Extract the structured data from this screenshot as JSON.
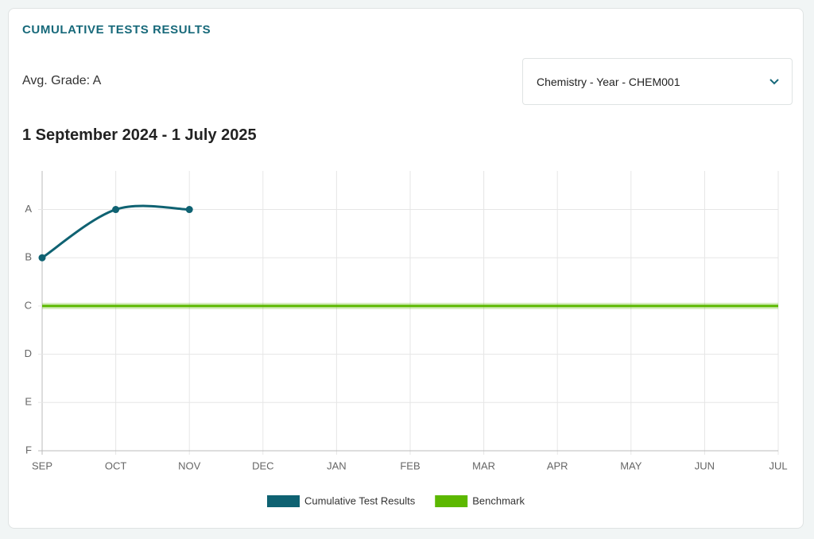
{
  "header": {
    "title": "CUMULATIVE TESTS RESULTS",
    "avg_grade": "Avg. Grade: A",
    "dropdown": "Chemistry - Year - CHEM001",
    "date_range": "1 September 2024 - 1 July 2025"
  },
  "chart_data": {
    "type": "line",
    "categories": [
      "SEP",
      "OCT",
      "NOV",
      "DEC",
      "JAN",
      "FEB",
      "MAR",
      "APR",
      "MAY",
      "JUN",
      "JUL"
    ],
    "series": [
      {
        "name": "Cumulative Test Results",
        "color": "#0f6272",
        "values": [
          4,
          5,
          5,
          null,
          null,
          null,
          null,
          null,
          null,
          null,
          null
        ]
      },
      {
        "name": "Benchmark",
        "color": "#5cb800",
        "values": [
          3,
          3,
          3,
          3,
          3,
          3,
          3,
          3,
          3,
          3,
          3
        ]
      }
    ],
    "ylim": [
      0,
      5.8
    ],
    "yticks": [
      {
        "value": 0,
        "label": "F"
      },
      {
        "value": 1,
        "label": "E"
      },
      {
        "value": 2,
        "label": "D"
      },
      {
        "value": 3,
        "label": "C"
      },
      {
        "value": 4,
        "label": "B"
      },
      {
        "value": 5,
        "label": "A"
      }
    ],
    "grid": true,
    "legend": "bottom"
  }
}
